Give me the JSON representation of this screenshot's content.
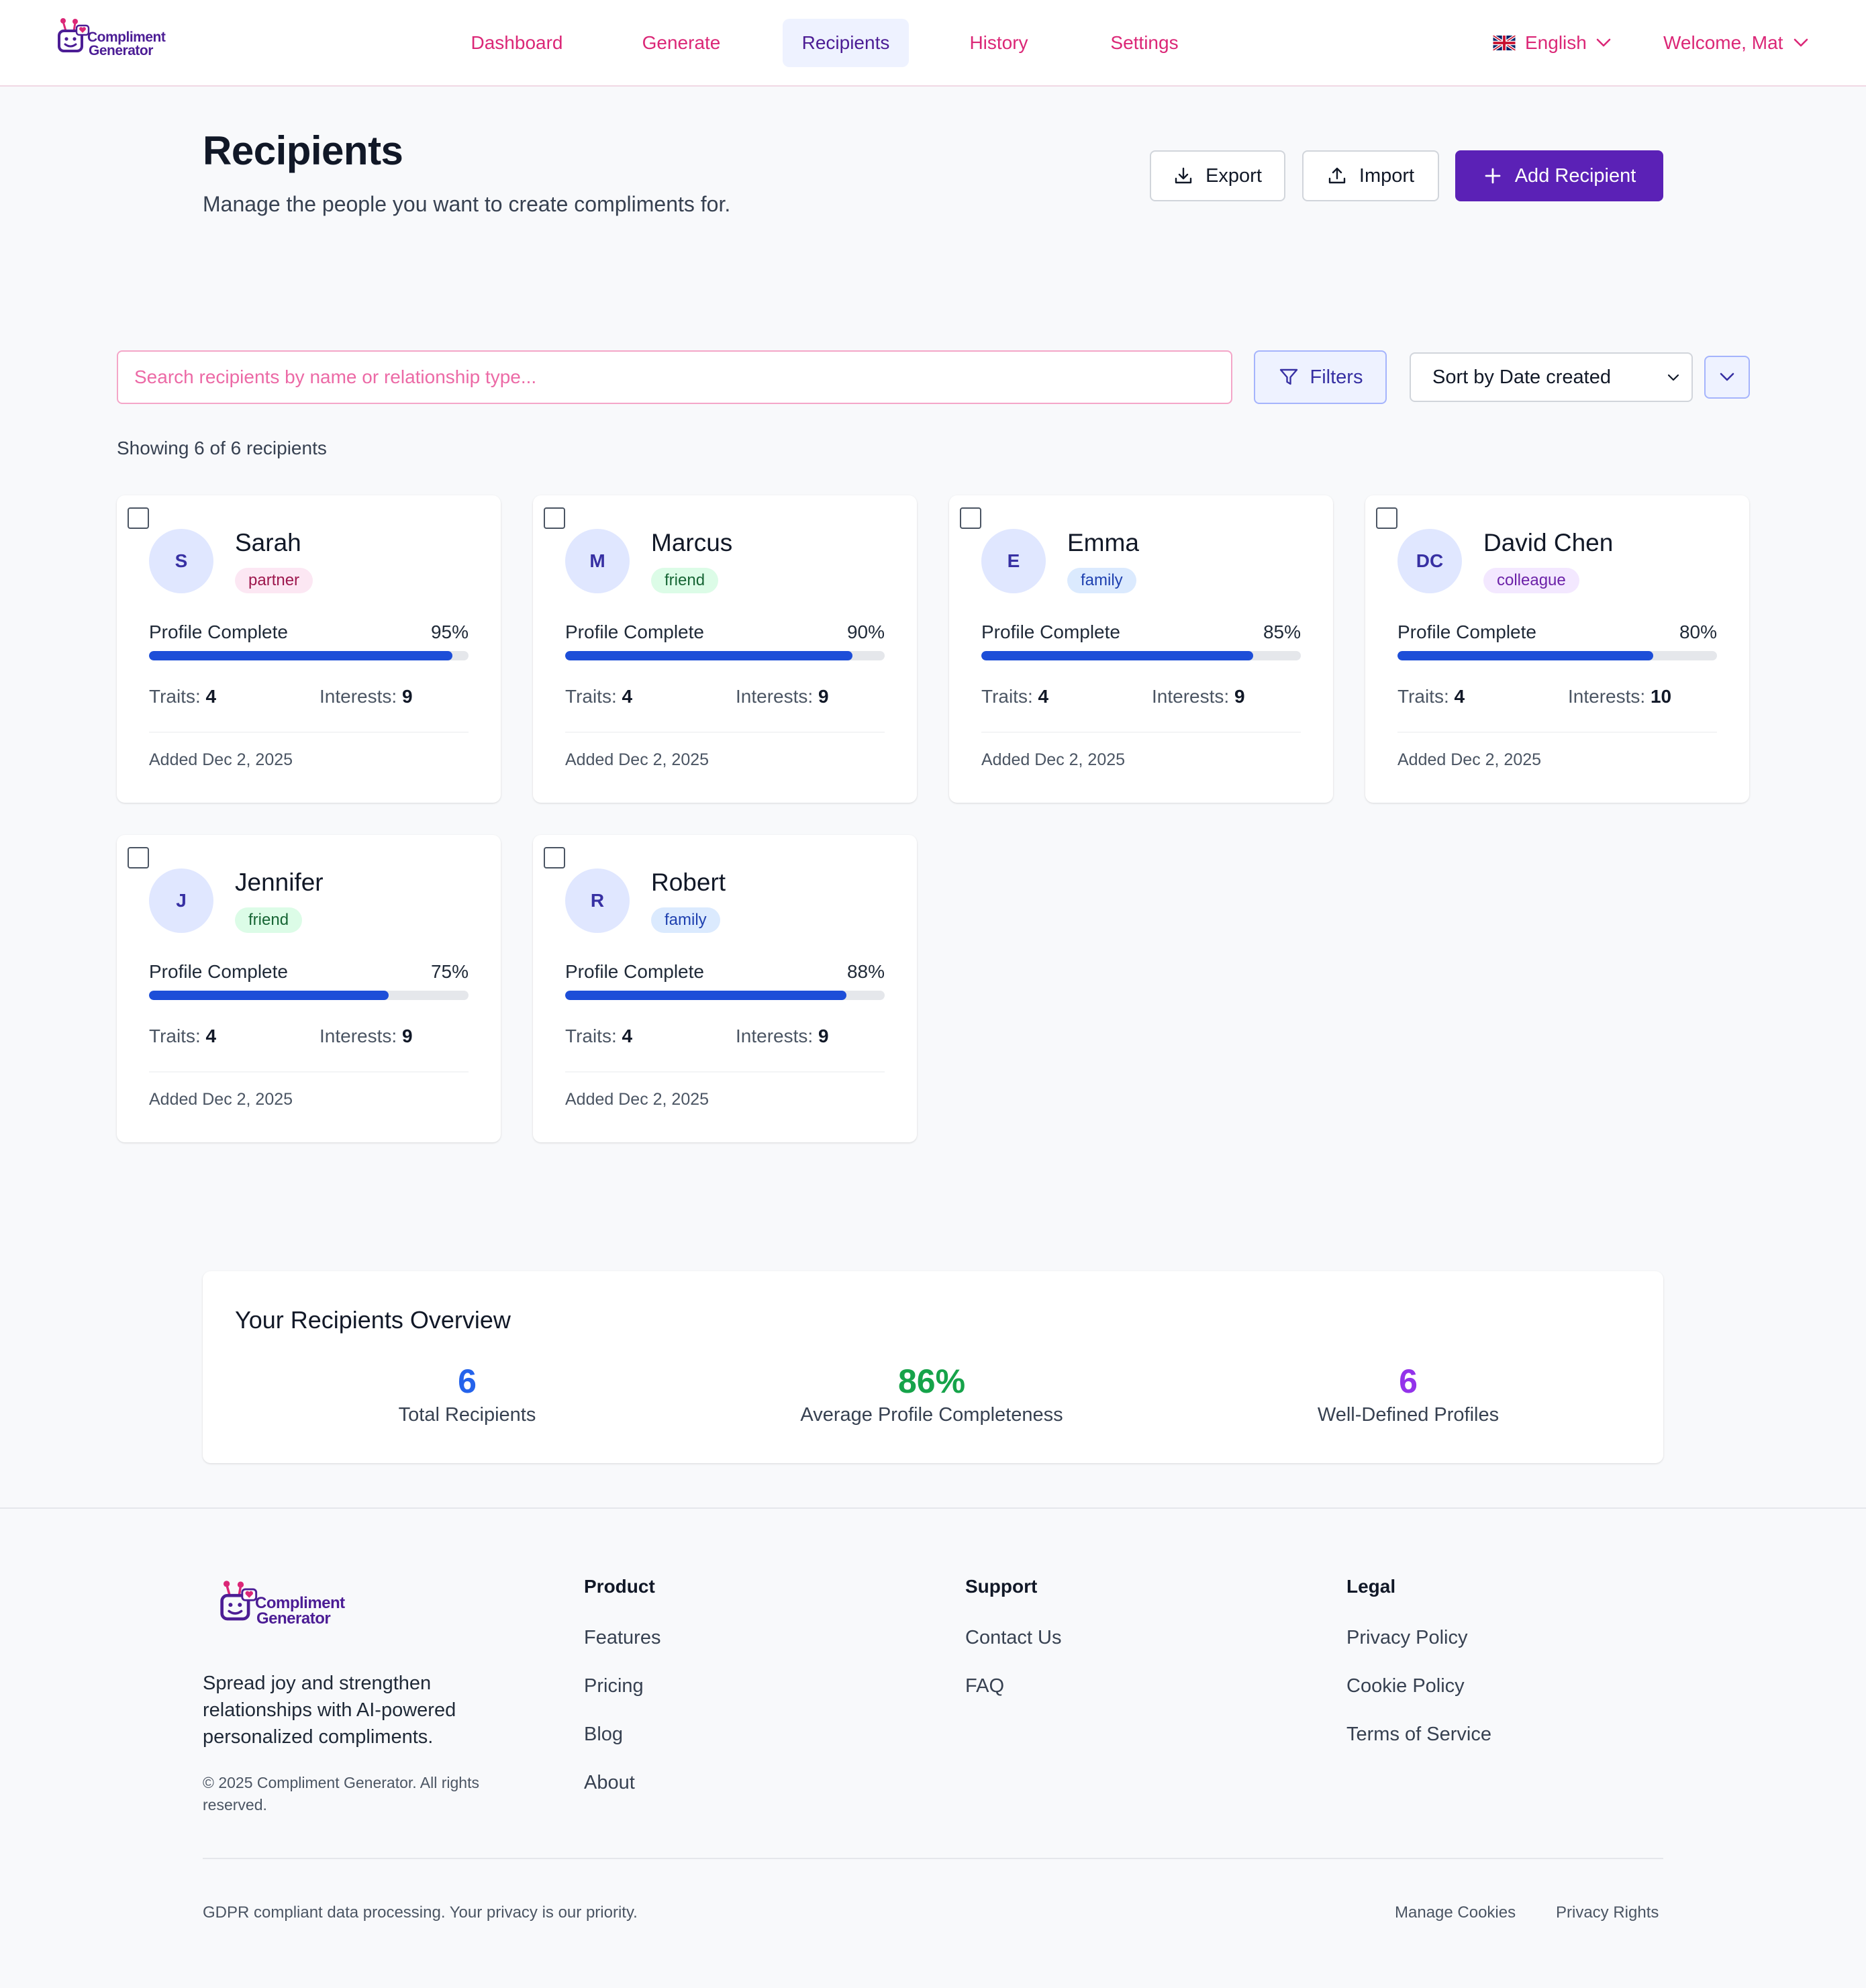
{
  "brand": {
    "line1": "Compliment",
    "line2": "Generator"
  },
  "nav": {
    "items": [
      {
        "label": "Dashboard",
        "active": false
      },
      {
        "label": "Generate",
        "active": false
      },
      {
        "label": "Recipients",
        "active": true
      },
      {
        "label": "History",
        "active": false
      },
      {
        "label": "Settings",
        "active": false
      }
    ],
    "language": "English",
    "user": "Welcome, Mat"
  },
  "page": {
    "title": "Recipients",
    "subtitle": "Manage the people you want to create compliments for.",
    "export_label": "Export",
    "import_label": "Import",
    "add_label": "Add Recipient"
  },
  "search": {
    "placeholder": "Search recipients by name or relationship type...",
    "value": ""
  },
  "filters_label": "Filters",
  "sort": {
    "selected": "Sort by Date created"
  },
  "showing": "Showing 6 of 6 recipients",
  "labels": {
    "profile_complete": "Profile Complete",
    "traits": "Traits:",
    "interests": "Interests:"
  },
  "recipients": [
    {
      "initials": "S",
      "name": "Sarah",
      "relationship": "partner",
      "completeness": 95,
      "completeness_label": "95%",
      "traits": 4,
      "interests": 9,
      "added": "Added Dec 2, 2025"
    },
    {
      "initials": "M",
      "name": "Marcus",
      "relationship": "friend",
      "completeness": 90,
      "completeness_label": "90%",
      "traits": 4,
      "interests": 9,
      "added": "Added Dec 2, 2025"
    },
    {
      "initials": "E",
      "name": "Emma",
      "relationship": "family",
      "completeness": 85,
      "completeness_label": "85%",
      "traits": 4,
      "interests": 9,
      "added": "Added Dec 2, 2025"
    },
    {
      "initials": "DC",
      "name": "David Chen",
      "relationship": "colleague",
      "completeness": 80,
      "completeness_label": "80%",
      "traits": 4,
      "interests": 10,
      "added": "Added Dec 2, 2025"
    },
    {
      "initials": "J",
      "name": "Jennifer",
      "relationship": "friend",
      "completeness": 75,
      "completeness_label": "75%",
      "traits": 4,
      "interests": 9,
      "added": "Added Dec 2, 2025"
    },
    {
      "initials": "R",
      "name": "Robert",
      "relationship": "family",
      "completeness": 88,
      "completeness_label": "88%",
      "traits": 4,
      "interests": 9,
      "added": "Added Dec 2, 2025"
    }
  ],
  "badge_colors": {
    "partner": {
      "bg": "#fce7f3",
      "fg": "#9d174d"
    },
    "friend": {
      "bg": "#dcfce7",
      "fg": "#166534"
    },
    "family": {
      "bg": "#dbeafe",
      "fg": "#1e40af"
    },
    "colleague": {
      "bg": "#f3e8ff",
      "fg": "#6b21a8"
    }
  },
  "overview": {
    "title": "Your Recipients Overview",
    "stats": [
      {
        "value": "6",
        "label": "Total Recipients",
        "color": "#2563eb"
      },
      {
        "value": "86%",
        "label": "Average Profile Completeness",
        "color": "#16a34a"
      },
      {
        "value": "6",
        "label": "Well-Defined Profiles",
        "color": "#9333ea"
      }
    ]
  },
  "footer": {
    "description": "Spread joy and strengthen relationships with AI-powered personalized compliments.",
    "copyright": "© 2025 Compliment Generator. All rights reserved.",
    "columns": [
      {
        "heading": "Product",
        "links": [
          "Features",
          "Pricing",
          "Blog",
          "About"
        ]
      },
      {
        "heading": "Support",
        "links": [
          "Contact Us",
          "FAQ"
        ]
      },
      {
        "heading": "Legal",
        "links": [
          "Privacy Policy",
          "Cookie Policy",
          "Terms of Service"
        ]
      }
    ],
    "gdpr": "GDPR compliant data processing. Your privacy is our priority.",
    "manage_cookies": "Manage Cookies",
    "privacy_rights": "Privacy Rights"
  },
  "colors": {
    "primary": "#5b21b6",
    "accent_pink": "#db2777",
    "progress": "#1d4ed8"
  }
}
